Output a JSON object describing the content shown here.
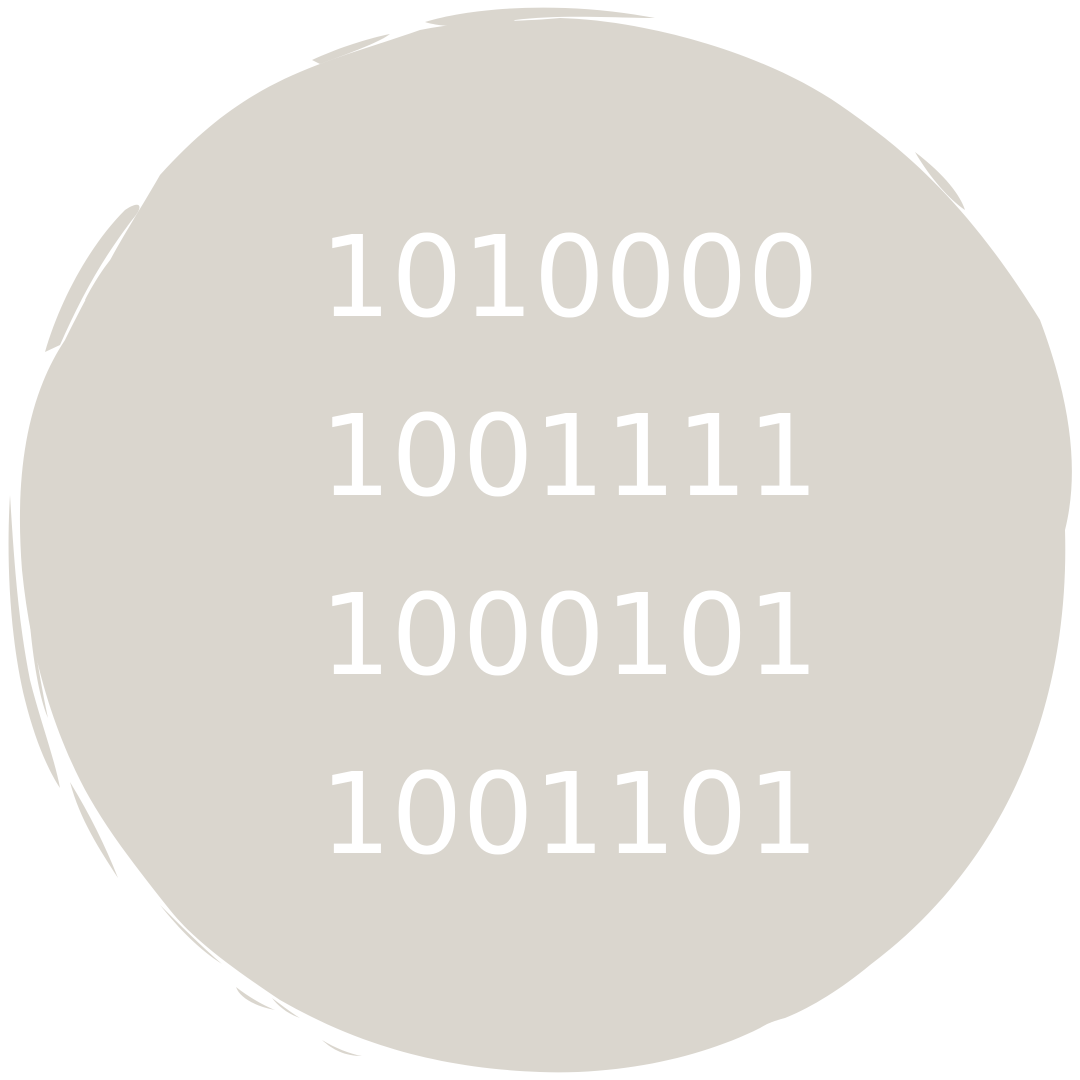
{
  "background": {
    "blob_color": "#dad6ce",
    "page_color": "#ffffff",
    "text_color": "#ffffff"
  },
  "binary": {
    "lines": [
      "1010000",
      "1001111",
      "1000101",
      "1001101"
    ]
  }
}
